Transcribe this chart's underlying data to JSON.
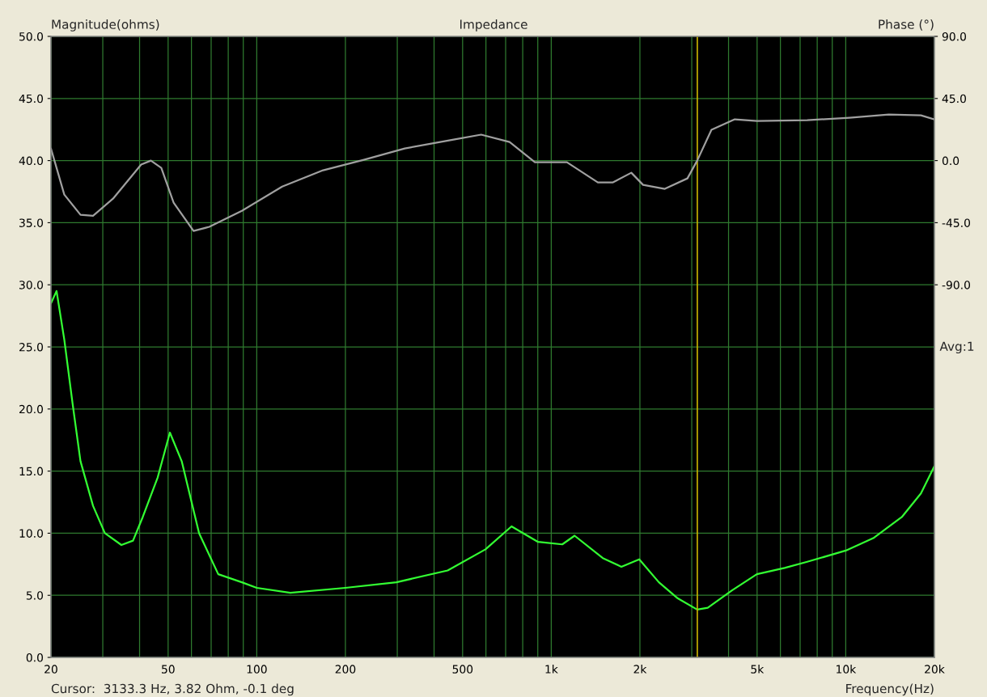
{
  "chart_data": {
    "type": "line",
    "title": "Impedance",
    "xlabel": "Frequency(Hz)",
    "ylabel": "Magnitude(ohms)",
    "y2label": "Phase (°)",
    "log": "x",
    "grid": true,
    "legend": false,
    "xlim": [
      20,
      20000
    ],
    "ylim": [
      0,
      50
    ],
    "y2lim": [
      -360,
      90
    ],
    "xticks": [
      {
        "value": 20,
        "label": "20"
      },
      {
        "value": 30,
        "label": null
      },
      {
        "value": 40,
        "label": null
      },
      {
        "value": 50,
        "label": "50"
      },
      {
        "value": 60,
        "label": null
      },
      {
        "value": 70,
        "label": null
      },
      {
        "value": 80,
        "label": null
      },
      {
        "value": 90,
        "label": null
      },
      {
        "value": 100,
        "label": "100"
      },
      {
        "value": 200,
        "label": "200"
      },
      {
        "value": 300,
        "label": null
      },
      {
        "value": 400,
        "label": null
      },
      {
        "value": 500,
        "label": "500"
      },
      {
        "value": 600,
        "label": null
      },
      {
        "value": 700,
        "label": null
      },
      {
        "value": 800,
        "label": null
      },
      {
        "value": 900,
        "label": null
      },
      {
        "value": 1000,
        "label": "1k"
      },
      {
        "value": 2000,
        "label": "2k"
      },
      {
        "value": 3000,
        "label": null
      },
      {
        "value": 4000,
        "label": null
      },
      {
        "value": 5000,
        "label": "5k"
      },
      {
        "value": 6000,
        "label": null
      },
      {
        "value": 7000,
        "label": null
      },
      {
        "value": 8000,
        "label": null
      },
      {
        "value": 9000,
        "label": null
      },
      {
        "value": 10000,
        "label": "10k"
      },
      {
        "value": 20000,
        "label": "20k"
      }
    ],
    "yticks": [
      {
        "value": 0,
        "label": "0.0"
      },
      {
        "value": 5,
        "label": "5.0"
      },
      {
        "value": 10,
        "label": "10.0"
      },
      {
        "value": 15,
        "label": "15.0"
      },
      {
        "value": 20,
        "label": "20.0"
      },
      {
        "value": 25,
        "label": "25.0"
      },
      {
        "value": 30,
        "label": "30.0"
      },
      {
        "value": 35,
        "label": "35.0"
      },
      {
        "value": 40,
        "label": "40.0"
      },
      {
        "value": 45,
        "label": "45.0"
      },
      {
        "value": 50,
        "label": "50.0"
      }
    ],
    "y2ticks": [
      {
        "value": 90,
        "label": "90.0"
      },
      {
        "value": 45,
        "label": "45.0"
      },
      {
        "value": 0,
        "label": "0.0"
      },
      {
        "value": -45,
        "label": "-45.0"
      },
      {
        "value": -90,
        "label": "-90.0"
      }
    ],
    "series": [
      {
        "color": "#33ff33",
        "x": [
          20,
          20.9,
          22.2,
          23.7,
          25.2,
          27.8,
          30.5,
          34.7,
          38,
          41,
          46.1,
          50.7,
          55.6,
          63.7,
          74,
          89,
          100,
          130,
          200,
          298,
          445,
          598,
          733,
          902,
          1090,
          1200,
          1496,
          1730,
          1990,
          2320,
          2690,
          3130,
          3400,
          4110,
          4990,
          6200,
          7400,
          10000,
          12400,
          15500,
          18000,
          20000
        ],
        "values": [
          28.5,
          29.5,
          25.6,
          20.4,
          15.8,
          12.2,
          10.0,
          9.05,
          9.4,
          11.3,
          14.5,
          18.1,
          15.8,
          10.0,
          6.7,
          6.05,
          5.6,
          5.2,
          5.6,
          6.05,
          7.0,
          8.7,
          10.55,
          9.3,
          9.1,
          9.8,
          8.0,
          7.3,
          7.9,
          6.05,
          4.75,
          3.85,
          4.0,
          5.4,
          6.7,
          7.2,
          7.7,
          8.6,
          9.6,
          11.3,
          13.2,
          15.4
        ]
      },
      {
        "color": "#a0a0a0",
        "axis": "y2",
        "x": [
          20,
          22.2,
          25.2,
          27.8,
          32.5,
          40.5,
          43.7,
          47.4,
          52.2,
          61,
          69,
          89,
          122,
          168,
          231,
          318,
          466,
          578,
          722,
          880,
          1130,
          1440,
          1620,
          1870,
          2050,
          2430,
          2900,
          3130,
          3500,
          4200,
          5000,
          7400,
          10300,
          14000,
          18000,
          20000
        ],
        "values": [
          8.8,
          -24.6,
          -39.3,
          -40,
          -27.6,
          -2.9,
          0,
          -5.3,
          -30.5,
          -51,
          -48,
          -36.4,
          -18.8,
          -7,
          0.6,
          8.8,
          15.2,
          18.8,
          13.5,
          -1.2,
          -1.2,
          -15.8,
          -15.8,
          -8.8,
          -17.6,
          -20.5,
          -12.9,
          0,
          22.3,
          29.9,
          28.7,
          29.3,
          31.1,
          33.4,
          32.8,
          29.9
        ]
      }
    ],
    "ref_lines": [
      {
        "axis": "x",
        "value": 3133.3,
        "color": "#c8b400"
      }
    ],
    "annotations": [
      "Avg:1",
      "Cursor:  3133.3 Hz, 3.82 Ohm, -0.1 deg"
    ]
  }
}
